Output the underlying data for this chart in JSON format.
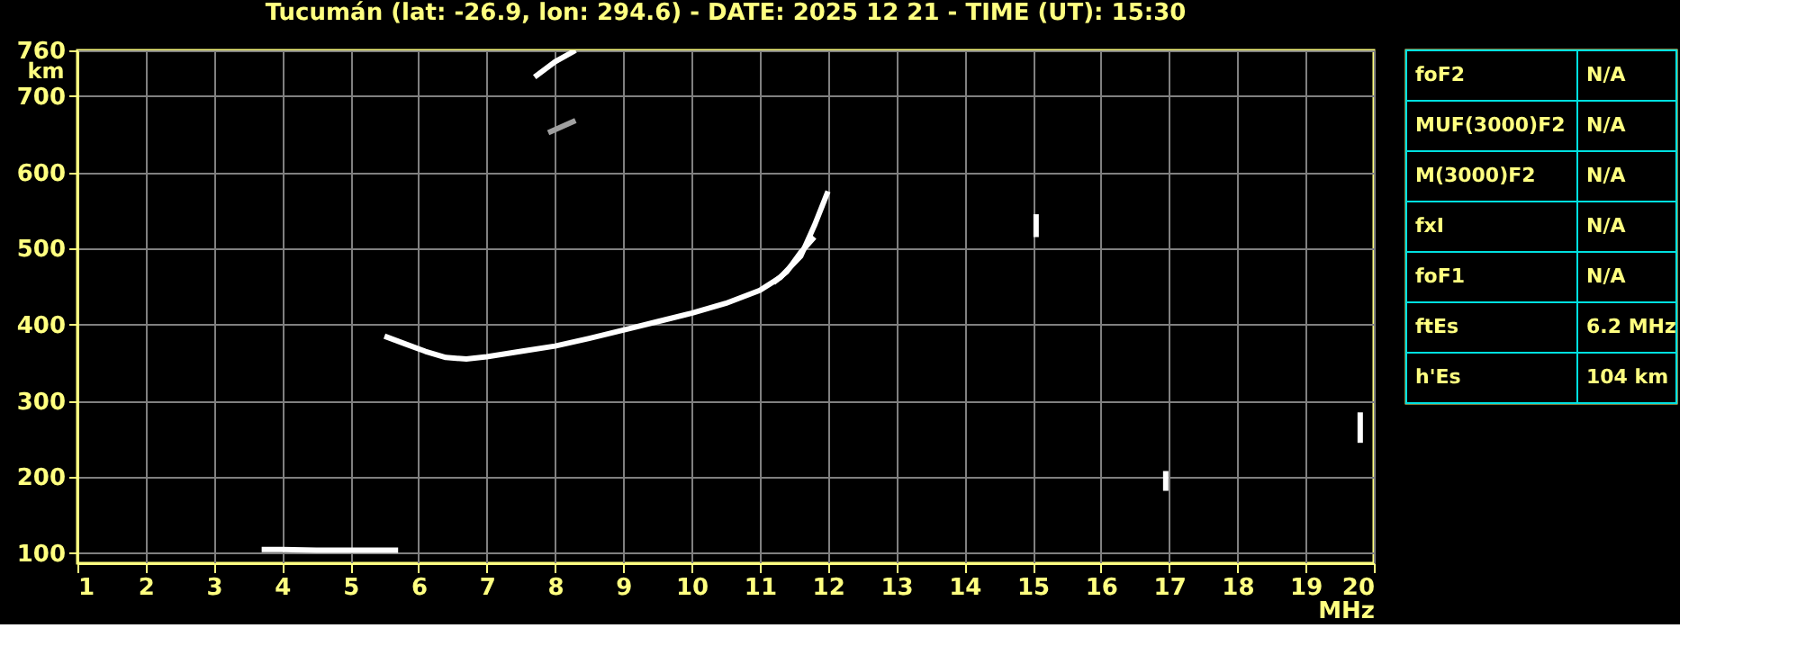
{
  "chart_data": [
    {
      "type": "line",
      "title": "Tucumán (lat: -26.9, lon: 294.6) - DATE: 2025 12 21 - TIME (UT): 15:30",
      "xlabel": "MHz",
      "ylabel": "km",
      "xlim": [
        1,
        20
      ],
      "xticks": [
        1,
        2,
        3,
        4,
        5,
        6,
        7,
        8,
        9,
        10,
        11,
        12,
        13,
        14,
        15,
        16,
        17,
        18,
        19,
        20
      ],
      "ylim": [
        87,
        760
      ],
      "yticks": [
        100,
        200,
        300,
        400,
        500,
        600,
        700,
        760
      ],
      "grid": true,
      "marker": "none",
      "series": [
        {
          "color": "#ffffff",
          "x": [
            3.7,
            4.0,
            4.5,
            5.0,
            5.5,
            5.7
          ],
          "values": [
            105,
            105,
            104,
            104,
            104,
            104
          ]
        },
        {
          "color": "#ffffff",
          "x": [
            5.5,
            5.8,
            6.1,
            6.4,
            6.7,
            7.0,
            7.5,
            8.0,
            8.5,
            9.0,
            9.5,
            10.0,
            10.5,
            11.0,
            11.3,
            11.6,
            11.8,
            12.0
          ],
          "values": [
            385,
            375,
            365,
            357,
            355,
            358,
            365,
            372,
            382,
            393,
            404,
            415,
            428,
            445,
            462,
            490,
            530,
            575
          ]
        },
        {
          "color": "#ffffff",
          "x": [
            11.2,
            11.4,
            11.6,
            11.8
          ],
          "values": [
            455,
            470,
            495,
            515
          ]
        },
        {
          "color": "#ffffff",
          "x": [
            7.7,
            8.0,
            8.3
          ],
          "values": [
            725,
            745,
            760
          ]
        },
        {
          "color": "#a0a0a0",
          "x": [
            7.9,
            8.1,
            8.3
          ],
          "values": [
            652,
            660,
            668
          ]
        },
        {
          "color": "#ffffff",
          "x": [
            15.05,
            15.05
          ],
          "values": [
            515,
            545
          ]
        },
        {
          "color": "#ffffff",
          "x": [
            16.95,
            16.95
          ],
          "values": [
            182,
            208
          ]
        },
        {
          "color": "#ffffff",
          "x": [
            19.8,
            19.8
          ],
          "values": [
            245,
            285
          ]
        }
      ]
    },
    {
      "type": "other",
      "annotations": [
        "foF2",
        "N/A",
        "MUF(3000)F2",
        "N/A",
        "M(3000)F2",
        "N/A",
        "fxI",
        "N/A",
        "foF1",
        "N/A",
        "ftEs",
        "6.2 MHz",
        "h'Es",
        "104 km"
      ]
    }
  ]
}
